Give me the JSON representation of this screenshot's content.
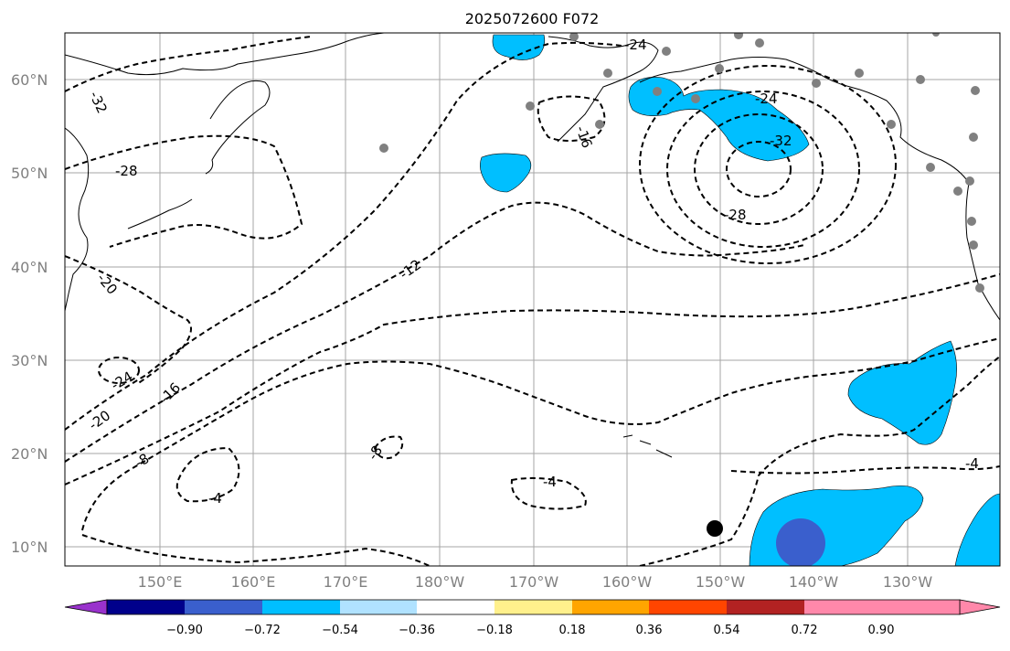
{
  "title": "2025072600 F072",
  "lat_labels": [
    "60°N",
    "50°N",
    "40°N",
    "30°N",
    "20°N",
    "10°N"
  ],
  "lon_labels": [
    "150°E",
    "160°E",
    "170°E",
    "180°W",
    "170°W",
    "160°W",
    "150°W",
    "140°W",
    "130°W"
  ],
  "contour_labels": [
    "-24",
    "-24",
    "-32",
    "-28",
    "-28",
    "-32",
    "-20",
    "-24",
    "-16",
    "-20",
    "-12",
    "-8",
    "-8",
    "-4",
    "-4",
    "-4",
    "-16"
  ],
  "colorbar": {
    "ticks": [
      "−0.90",
      "−0.72",
      "−0.54",
      "−0.36",
      "−0.18",
      "0.18",
      "0.36",
      "0.54",
      "0.72",
      "0.90"
    ],
    "colors": [
      "#9932cc",
      "#00008b",
      "#3a5fcd",
      "#00bfff",
      "#b0e2ff",
      "#ffffff",
      "#fff08c",
      "#ffa500",
      "#ff4500",
      "#b22222",
      "#ff88aa",
      "#ff88aa"
    ]
  },
  "colors": {
    "grid": "#a6a6a6",
    "shade_blue": "#00bfff",
    "shade_dark_blue": "#3a5fcd",
    "station": "#808080"
  }
}
